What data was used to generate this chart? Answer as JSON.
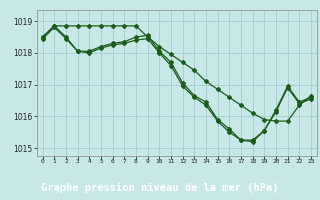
{
  "title": "Graphe pression niveau de la mer (hPa)",
  "background_color": "#c8e8e8",
  "grid_color": "#a8d0d0",
  "line_color": "#1a5c1a",
  "label_bg": "#2a7a2a",
  "label_fg": "#ffffff",
  "ylim": [
    1014.75,
    1019.35
  ],
  "yticks": [
    1015,
    1016,
    1017,
    1018,
    1019
  ],
  "line1_x": [
    0,
    1,
    2,
    3,
    4,
    5,
    6,
    7,
    8,
    9,
    10,
    11,
    12,
    13,
    14,
    15,
    16,
    17,
    18,
    19,
    20,
    21,
    22,
    23
  ],
  "line1_y": [
    1018.5,
    1018.85,
    1018.85,
    1018.85,
    1018.85,
    1018.85,
    1018.85,
    1018.85,
    1018.85,
    1018.5,
    1018.2,
    1017.95,
    1017.7,
    1017.45,
    1017.1,
    1016.85,
    1016.6,
    1016.35,
    1016.1,
    1015.9,
    1015.85,
    1015.85,
    1016.35,
    1016.65
  ],
  "line2_x": [
    0,
    1,
    2,
    3,
    4,
    5,
    6,
    7,
    8,
    9,
    10,
    11,
    12,
    13,
    14,
    15,
    16,
    17,
    18,
    19,
    20,
    21,
    22,
    23
  ],
  "line2_y": [
    1018.5,
    1018.85,
    1018.5,
    1018.05,
    1018.05,
    1018.2,
    1018.3,
    1018.35,
    1018.5,
    1018.55,
    1018.05,
    1017.7,
    1017.05,
    1016.65,
    1016.45,
    1015.9,
    1015.6,
    1015.25,
    1015.25,
    1015.55,
    1016.2,
    1016.95,
    1016.45,
    1016.6
  ],
  "line3_x": [
    0,
    1,
    2,
    3,
    4,
    5,
    6,
    7,
    8,
    9,
    10,
    11,
    12,
    13,
    14,
    15,
    16,
    17,
    18,
    19,
    20,
    21,
    22,
    23
  ],
  "line3_y": [
    1018.45,
    1018.8,
    1018.45,
    1018.05,
    1018.0,
    1018.15,
    1018.25,
    1018.3,
    1018.4,
    1018.45,
    1018.0,
    1017.6,
    1016.95,
    1016.6,
    1016.35,
    1015.85,
    1015.5,
    1015.25,
    1015.2,
    1015.55,
    1016.15,
    1016.9,
    1016.4,
    1016.55
  ]
}
